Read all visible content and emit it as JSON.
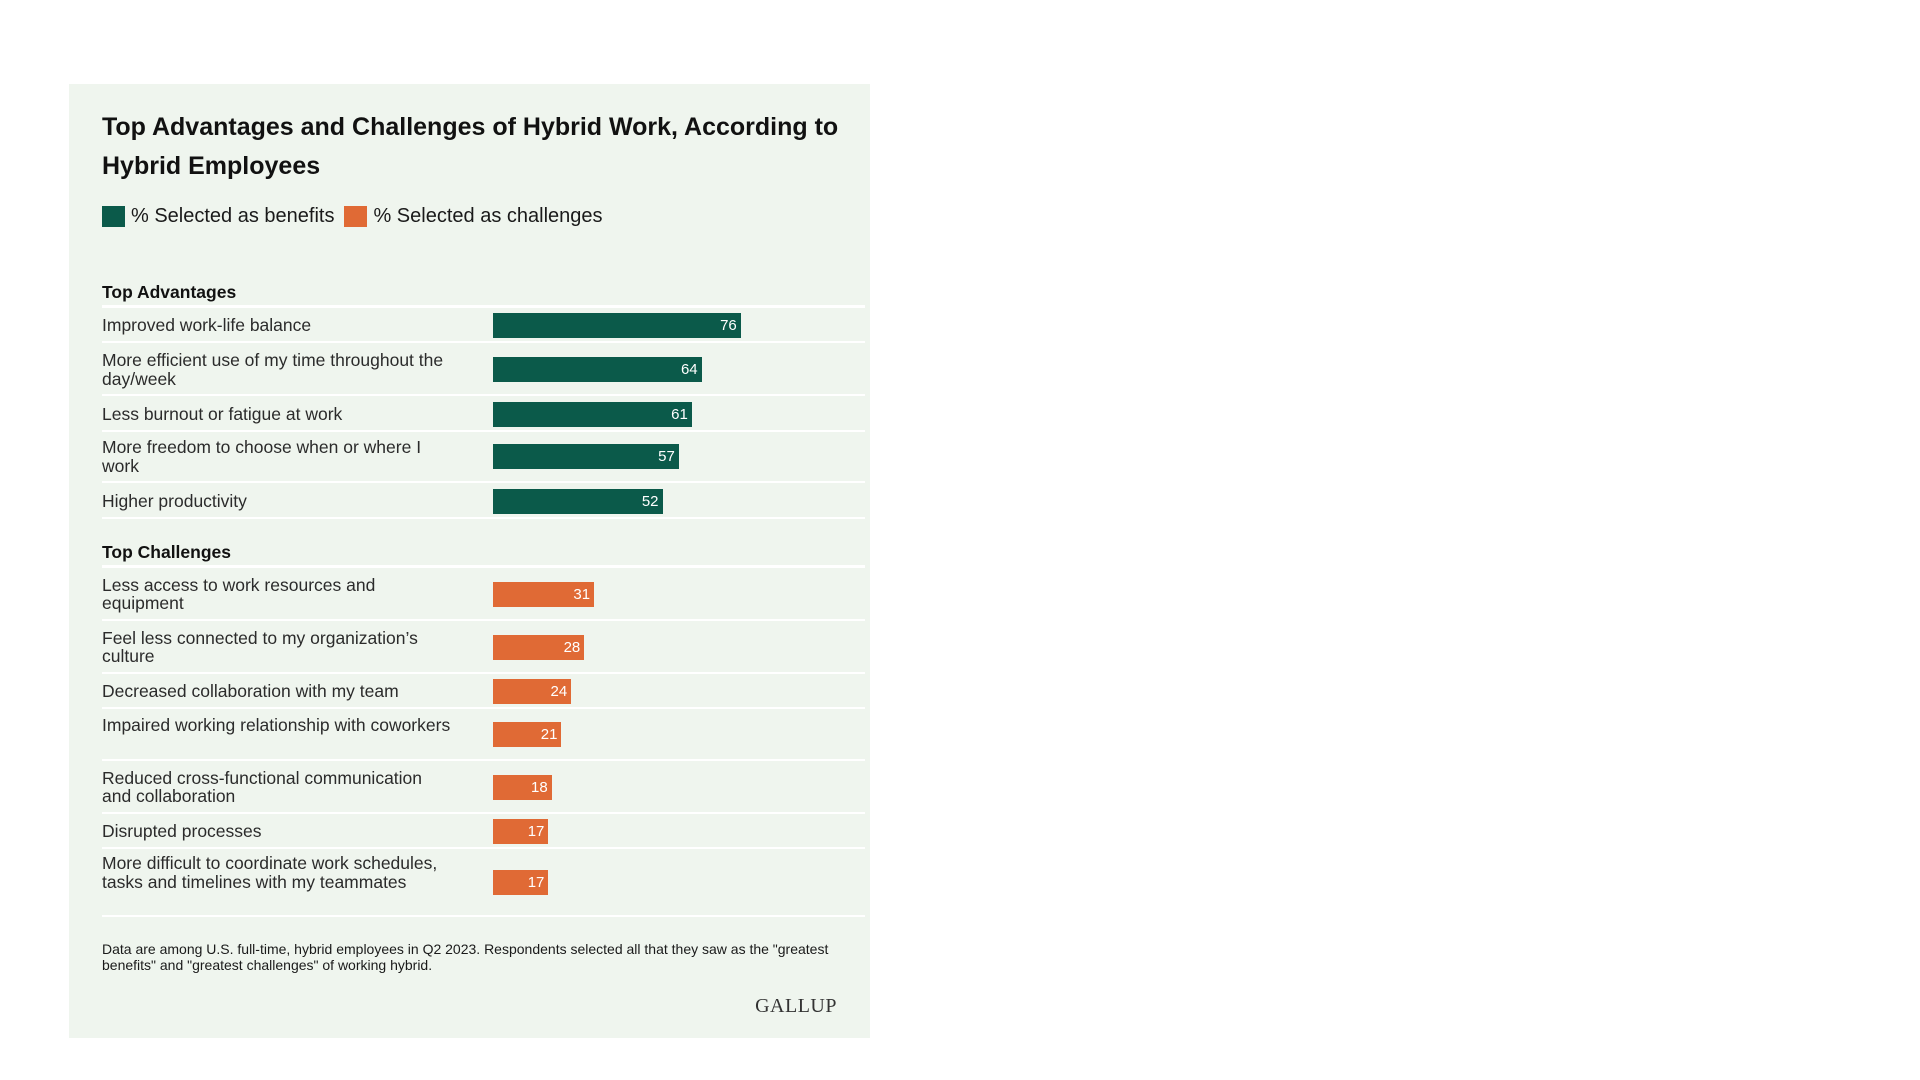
{
  "chart_data": {
    "type": "bar",
    "orientation": "horizontal",
    "title": "Top Advantages and Challenges of Hybrid Work, According to Hybrid Employees",
    "legend": [
      {
        "label": "% Selected as benefits",
        "color": "#0b5a4a"
      },
      {
        "label": "% Selected as challenges",
        "color": "#e06a35"
      }
    ],
    "xlim": [
      0,
      100
    ],
    "grid": false,
    "groups": [
      {
        "name": "Top Advantages",
        "series": "% Selected as benefits",
        "color": "#0b5a4a",
        "categories": [
          "Improved work-life balance",
          "More efficient use of my time throughout the day/week",
          "Less burnout or fatigue at work",
          "More freedom to choose when or where I work",
          "Higher productivity"
        ],
        "values": [
          76,
          64,
          61,
          57,
          52
        ]
      },
      {
        "name": "Top Challenges",
        "series": "% Selected as challenges",
        "color": "#e06a35",
        "categories": [
          "Less access to work resources and equipment",
          "Feel less connected to my organization’s culture",
          "Decreased collaboration with my team",
          "Impaired working relationship with coworkers",
          "Reduced cross-functional communication and collaboration",
          "Disrupted processes",
          "More difficult to coordinate work schedules, tasks and timelines with my teammates"
        ],
        "values": [
          31,
          28,
          24,
          21,
          18,
          17,
          17
        ]
      }
    ],
    "footnote": "Data are among U.S. full-time, hybrid employees in Q2 2023. Respondents selected all that they saw as the \"greatest benefits\" and \"greatest challenges\" of working hybrid.",
    "source_logo": "GALLUP"
  }
}
